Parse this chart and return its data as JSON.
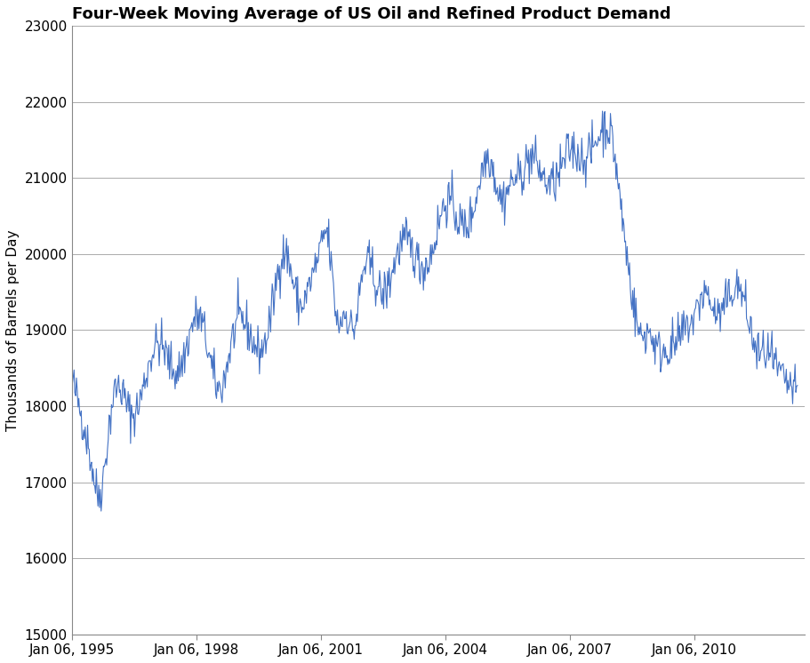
{
  "title": "Four-Week Moving Average of US Oil and Refined Product Demand",
  "ylabel": "Thousands of Barrels per Day",
  "xlabel": "",
  "ylim": [
    15000,
    23000
  ],
  "yticks": [
    15000,
    16000,
    17000,
    18000,
    19000,
    20000,
    21000,
    22000,
    23000
  ],
  "line_color": "#4472C4",
  "line_width": 0.8,
  "background_color": "#ffffff",
  "title_fontsize": 13,
  "axis_fontsize": 11,
  "tick_fontsize": 11,
  "xtick_labels": [
    "Jan 06, 1995",
    "Jan 06, 1998",
    "Jan 06, 2001",
    "Jan 06, 2004",
    "Jan 06, 2007",
    "Jan 06, 2010"
  ],
  "seed": 42
}
